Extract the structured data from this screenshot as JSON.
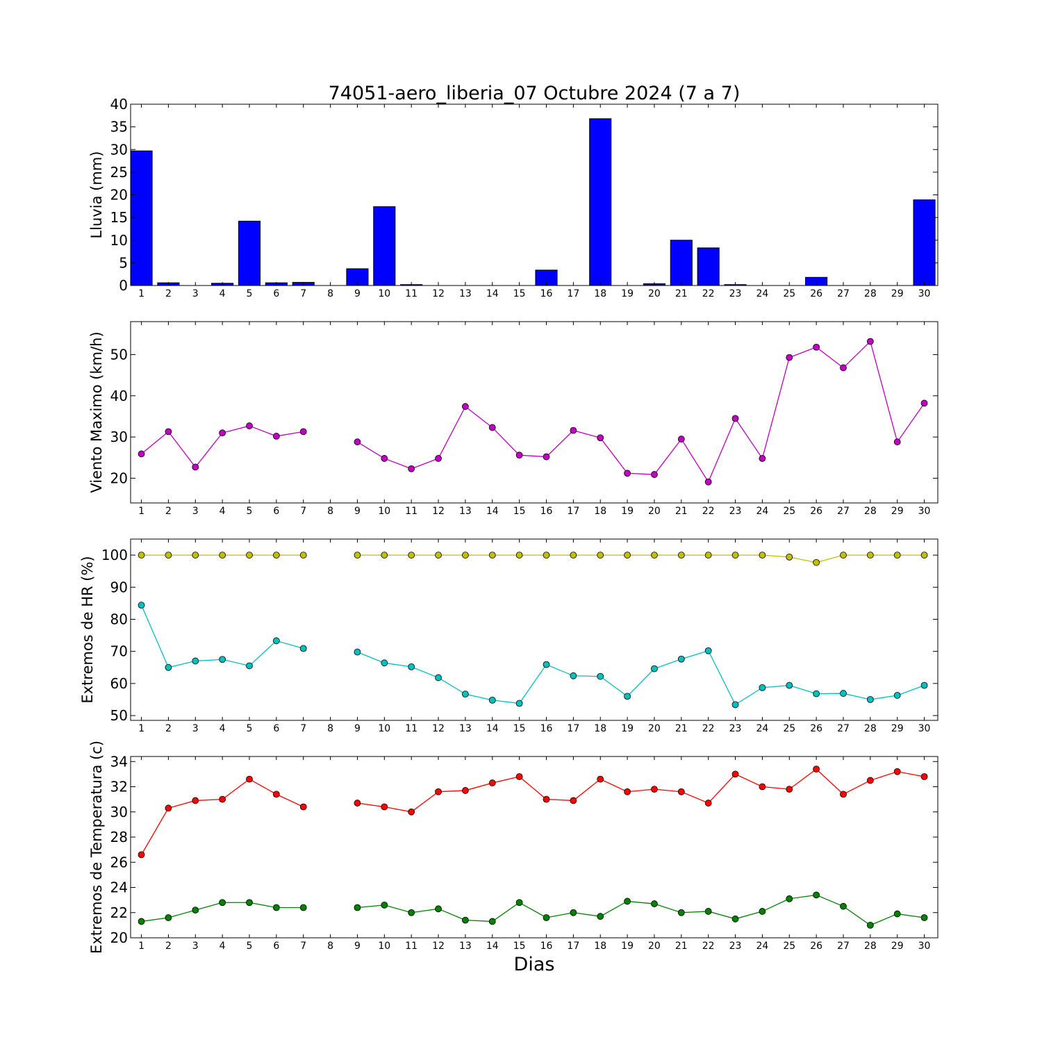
{
  "title": "74051-aero_liberia_07 Octubre 2024  (7 a 7)",
  "xlabel": "Dias",
  "days": [
    1,
    2,
    3,
    4,
    5,
    6,
    7,
    8,
    9,
    10,
    11,
    12,
    13,
    14,
    15,
    16,
    17,
    18,
    19,
    20,
    21,
    22,
    23,
    24,
    25,
    26,
    27,
    28,
    29,
    30
  ],
  "chart_data": [
    {
      "type": "bar",
      "ylabel": "Lluvia (mm)",
      "ylim": [
        0,
        40
      ],
      "yticks": [
        0,
        5,
        10,
        15,
        20,
        25,
        30,
        35,
        40
      ],
      "xlim": [
        0.6,
        30.5
      ],
      "color": "#0000ff",
      "x": [
        1,
        2,
        3,
        4,
        5,
        6,
        7,
        8,
        9,
        10,
        11,
        12,
        13,
        14,
        15,
        16,
        17,
        18,
        19,
        20,
        21,
        22,
        23,
        24,
        25,
        26,
        27,
        28,
        29,
        30
      ],
      "values": [
        29.7,
        0.6,
        0,
        0.5,
        14.2,
        0.6,
        0.7,
        0,
        3.7,
        17.4,
        0.2,
        0,
        0,
        0,
        0,
        3.4,
        0,
        36.8,
        0,
        0.4,
        10.0,
        8.3,
        0.2,
        0,
        0,
        1.8,
        0,
        0,
        0,
        18.9
      ]
    },
    {
      "type": "line",
      "ylabel": "Viento Maximo (km/h)",
      "ylim": [
        14,
        58
      ],
      "yticks": [
        20,
        30,
        40,
        50
      ],
      "xlim": [
        0.6,
        30.5
      ],
      "series": [
        {
          "color": "#bf00bf",
          "values": [
            25.9,
            31.3,
            22.7,
            31.0,
            32.7,
            30.2,
            31.3,
            null,
            28.8,
            24.8,
            22.3,
            24.8,
            37.4,
            32.3,
            25.6,
            25.2,
            31.6,
            29.8,
            21.2,
            20.9,
            29.5,
            19.1,
            34.5,
            24.8,
            49.3,
            51.8,
            46.8,
            53.2,
            28.8,
            38.2
          ]
        }
      ]
    },
    {
      "type": "line",
      "ylabel": "Extremos de HR (%)",
      "ylim": [
        48.5,
        105
      ],
      "yticks": [
        50,
        60,
        70,
        80,
        90,
        100
      ],
      "xlim": [
        0.6,
        30.5
      ],
      "series": [
        {
          "color": "#bfbf00",
          "values": [
            100,
            100,
            100,
            100,
            100,
            100,
            100,
            null,
            100,
            100,
            100,
            100,
            100,
            100,
            100,
            100,
            100,
            100,
            100,
            100,
            100,
            100,
            100,
            100,
            99.4,
            97.7,
            100,
            100,
            100,
            100
          ]
        },
        {
          "color": "#00bfbf",
          "values": [
            84.4,
            65.0,
            67.0,
            67.5,
            65.5,
            73.3,
            70.9,
            null,
            69.8,
            66.4,
            65.2,
            61.8,
            56.7,
            54.8,
            53.8,
            65.9,
            62.4,
            62.2,
            56.0,
            64.6,
            67.6,
            70.2,
            53.4,
            58.7,
            59.4,
            56.8,
            56.9,
            55.0,
            56.3,
            59.4
          ]
        }
      ]
    },
    {
      "type": "line",
      "ylabel": "Extremos de Temperatura (c)",
      "ylim": [
        20,
        34.4
      ],
      "yticks": [
        20,
        22,
        24,
        26,
        28,
        30,
        32,
        34
      ],
      "xlim": [
        0.6,
        30.5
      ],
      "series": [
        {
          "color": "#ff0000",
          "values": [
            26.6,
            30.3,
            30.9,
            31.0,
            32.6,
            31.4,
            30.4,
            null,
            30.7,
            30.4,
            30.0,
            31.6,
            31.7,
            32.3,
            32.8,
            31.0,
            30.9,
            32.6,
            31.6,
            31.8,
            31.6,
            30.7,
            33.0,
            32.0,
            31.8,
            33.4,
            31.4,
            32.5,
            33.2,
            32.8
          ]
        },
        {
          "color": "#008000",
          "values": [
            21.3,
            21.6,
            22.2,
            22.8,
            22.8,
            22.4,
            22.4,
            null,
            22.4,
            22.6,
            22.0,
            22.3,
            21.4,
            21.3,
            22.8,
            21.6,
            22.0,
            21.7,
            22.9,
            22.7,
            22.0,
            22.1,
            21.5,
            22.1,
            23.1,
            23.4,
            22.5,
            21.0,
            21.9,
            21.6
          ]
        }
      ]
    }
  ]
}
